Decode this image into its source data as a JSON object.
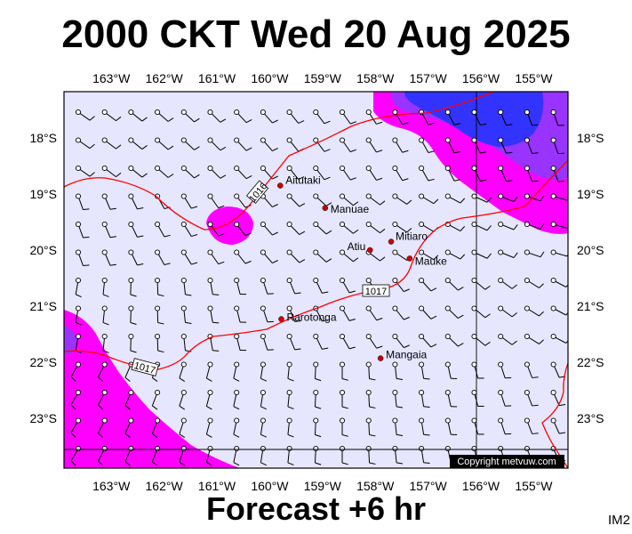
{
  "header": {
    "title": "2000 CKT Wed 20 Aug 2025"
  },
  "footer": {
    "subtitle": "Forecast +6 hr",
    "code": "IM2",
    "copyright": "Copyright metvuw.com"
  },
  "map": {
    "lon_ticks": [
      "163°W",
      "162°W",
      "161°W",
      "160°W",
      "159°W",
      "158°W",
      "157°W",
      "156°W",
      "155°W"
    ],
    "lat_ticks": [
      "18°S",
      "19°S",
      "20°S",
      "21°S",
      "22°S",
      "23°S"
    ],
    "places": [
      {
        "name": "Aitutaki",
        "lon": -159.8,
        "lat": -18.85
      },
      {
        "name": "Manuae",
        "lon": -158.95,
        "lat": -19.25
      },
      {
        "name": "Mitiaro",
        "lon": -157.7,
        "lat": -19.85
      },
      {
        "name": "Atiu",
        "lon": -158.1,
        "lat": -20.0
      },
      {
        "name": "Mauke",
        "lon": -157.35,
        "lat": -20.15
      },
      {
        "name": "Rarotonga",
        "lon": -159.78,
        "lat": -21.23
      },
      {
        "name": "Mangaia",
        "lon": -157.9,
        "lat": -21.93
      }
    ],
    "isobar_labels": [
      "1016",
      "1017",
      "1017"
    ],
    "colors": {
      "background": "#e6e6ff",
      "rain_magenta": "#ff00ff",
      "rain_purple": "#9933ff",
      "rain_blue": "#3333ff",
      "isobar": "#ff0000",
      "place_dot": "#cc0000"
    }
  }
}
